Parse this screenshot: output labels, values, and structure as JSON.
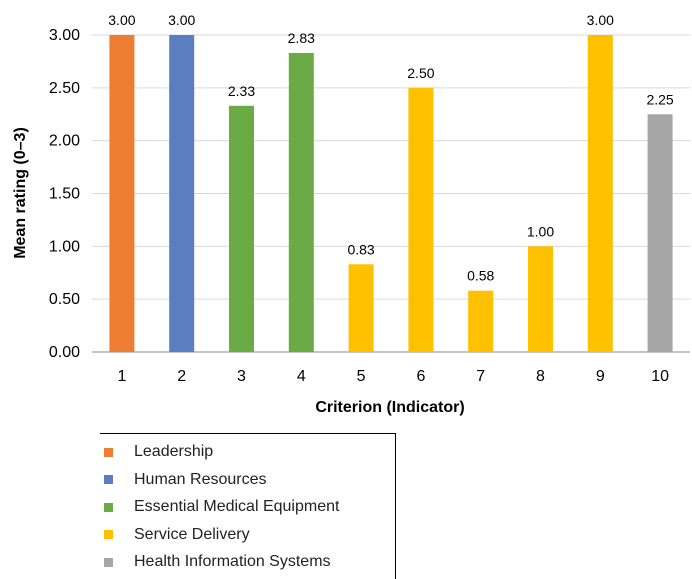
{
  "chart_data": {
    "type": "bar",
    "categories": [
      "1",
      "2",
      "3",
      "4",
      "5",
      "6",
      "7",
      "8",
      "9",
      "10"
    ],
    "values": [
      3.0,
      3.0,
      2.33,
      2.83,
      0.83,
      2.5,
      0.58,
      1.0,
      3.0,
      2.25
    ],
    "data_labels": [
      "3.00",
      "3.00",
      "2.33",
      "2.83",
      "0.83",
      "2.50",
      "0.58",
      "1.00",
      "3.00",
      "2.25"
    ],
    "bar_groups": [
      "Leadership",
      "Human Resources",
      "Essential Medical Equipment",
      "Essential Medical Equipment",
      "Service Delivery",
      "Service Delivery",
      "Service Delivery",
      "Service Delivery",
      "Service Delivery",
      "Health Information Systems"
    ],
    "xlabel": "Criterion (Indicator)",
    "ylabel": "Mean rating (0–3)",
    "ylim": [
      0,
      3
    ],
    "yticks": [
      "0.00",
      "0.50",
      "1.00",
      "1.50",
      "2.00",
      "2.50",
      "3.00"
    ],
    "grid": true,
    "legend": [
      {
        "name": "Leadership",
        "color": "#ED7D31"
      },
      {
        "name": "Human Resources",
        "color": "#5B7EC0"
      },
      {
        "name": "Essential Medical Equipment",
        "color": "#6AAB45"
      },
      {
        "name": "Service Delivery",
        "color": "#FFC000"
      },
      {
        "name": "Health Information Systems",
        "color": "#A6A6A6"
      }
    ],
    "legend_position": "bottom-left"
  }
}
